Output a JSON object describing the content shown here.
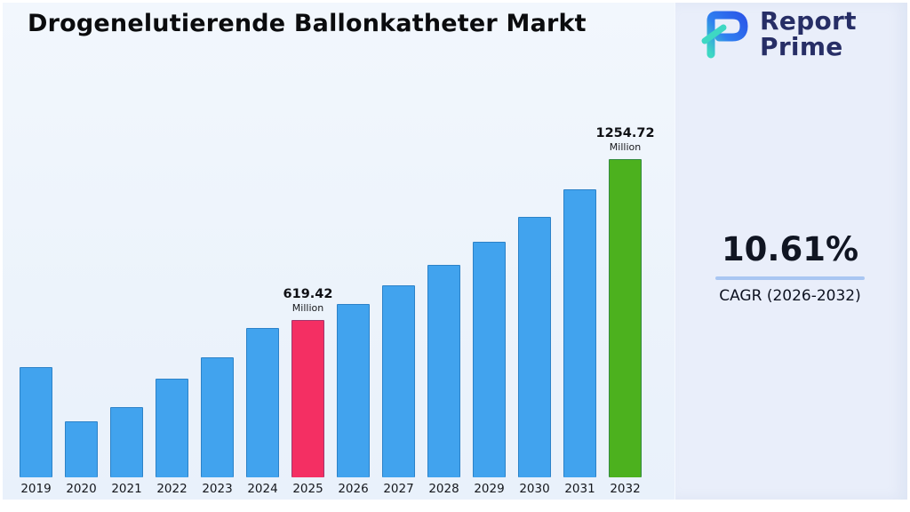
{
  "title": "Drogenelutierende Ballonkatheter Markt",
  "logo": {
    "line1": "Report",
    "line2": "Prime",
    "icon": "report-prime-logo-icon"
  },
  "cagr": {
    "value": "10.61%",
    "label": "CAGR (2026-2032)"
  },
  "chart_data": {
    "type": "bar",
    "title": "Drogenelutierende Ballonkatheter Markt",
    "categories": [
      "2019",
      "2020",
      "2021",
      "2022",
      "2023",
      "2024",
      "2025",
      "2026",
      "2027",
      "2028",
      "2029",
      "2030",
      "2031",
      "2032"
    ],
    "values": [
      433.1,
      222.4,
      276.8,
      389.2,
      471.4,
      589.1,
      619.42,
      685.14,
      757.83,
      838.23,
      927.17,
      1025.54,
      1134.35,
      1254.72
    ],
    "unit": "Million",
    "xlabel": "",
    "ylabel": "",
    "ylim": [
      0,
      1254.72
    ],
    "grid": false,
    "legend": "none",
    "bar_color": "#41a3ee",
    "highlights": [
      {
        "year": "2025",
        "value_label": "619.42",
        "unit": "Million",
        "color": "#f42f63"
      },
      {
        "year": "2032",
        "value_label": "1254.72",
        "unit": "Million",
        "color": "#4cb11e"
      }
    ]
  },
  "colors": {
    "background": "#eef3fb",
    "panel": "#e9eefa",
    "accent_underline": "#a9c6f2",
    "brand_navy": "#272e66",
    "brand_teal": "#3ed8c3",
    "brand_blue": "#2b57e8"
  }
}
